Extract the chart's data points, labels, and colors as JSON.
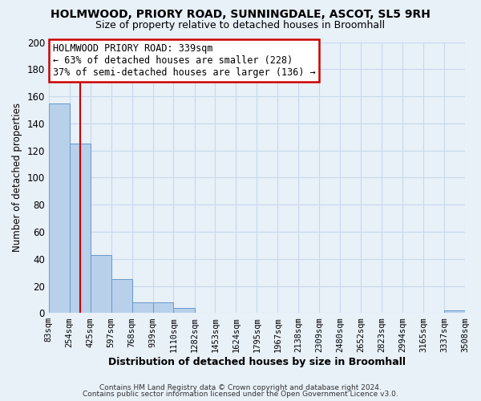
{
  "title": "HOLMWOOD, PRIORY ROAD, SUNNINGDALE, ASCOT, SL5 9RH",
  "subtitle": "Size of property relative to detached houses in Broomhall",
  "xlabel": "Distribution of detached houses by size in Broomhall",
  "ylabel": "Number of detached properties",
  "bar_edges": [
    83,
    254,
    425,
    597,
    768,
    939,
    1110,
    1282,
    1453,
    1624,
    1795,
    1967,
    2138,
    2309,
    2480,
    2652,
    2823,
    2994,
    3165,
    3337,
    3508
  ],
  "bar_heights": [
    155,
    125,
    43,
    25,
    8,
    8,
    4,
    0,
    0,
    0,
    0,
    0,
    0,
    0,
    0,
    0,
    0,
    0,
    0,
    2
  ],
  "bar_color": "#b8d0ea",
  "bar_edge_color": "#6699cc",
  "grid_color": "#c8d8ec",
  "bg_color": "#e8f0f8",
  "plot_bg_color": "#e8f0f8",
  "vline_x": 339,
  "vline_color": "#cc0000",
  "annotation_title": "HOLMWOOD PRIORY ROAD: 339sqm",
  "annotation_line1": "← 63% of detached houses are smaller (228)",
  "annotation_line2": "37% of semi-detached houses are larger (136) →",
  "annotation_box_color": "#ffffff",
  "annotation_box_edge": "#cc0000",
  "ylim": [
    0,
    200
  ],
  "yticks": [
    0,
    20,
    40,
    60,
    80,
    100,
    120,
    140,
    160,
    180,
    200
  ],
  "footer1": "Contains HM Land Registry data © Crown copyright and database right 2024.",
  "footer2": "Contains public sector information licensed under the Open Government Licence v3.0."
}
